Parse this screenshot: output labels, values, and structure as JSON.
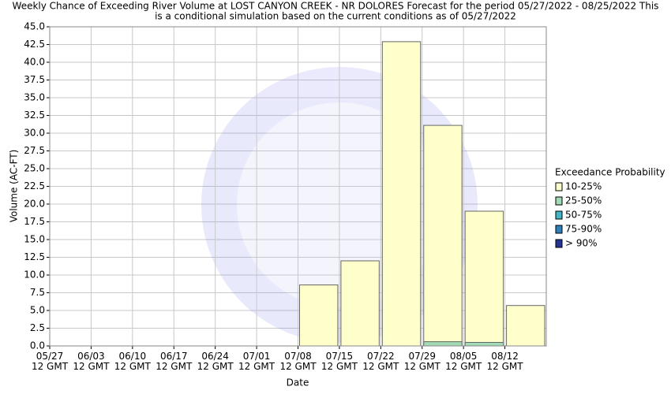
{
  "chart_data": {
    "type": "bar",
    "title": [
      "Weekly Chance of Exceeding River Volume at LOST CANYON CREEK - NR DOLORES Forecast for the period 05/27/2022 - 08/25/2022 This",
      "is a conditional simulation based on the current conditions as of 05/27/2022"
    ],
    "x_label": "Date",
    "y_label": "Volume (AC-FT)",
    "categories": [
      "05/27 12 GMT",
      "06/03 12 GMT",
      "06/10 12 GMT",
      "06/17 12 GMT",
      "06/24 12 GMT",
      "07/01 12 GMT",
      "07/08 12 GMT",
      "07/15 12 GMT",
      "07/22 12 GMT",
      "07/29 12 GMT",
      "08/05 12 GMT",
      "08/12 12 GMT"
    ],
    "legend_title": "Exceedance Probability",
    "legend_position": "right",
    "series": [
      {
        "name": "10-25%",
        "color": "#ffffcc",
        "values": [
          0,
          0,
          0,
          0,
          0,
          0,
          8.6,
          12.0,
          42.9,
          31.1,
          19.0,
          5.7
        ]
      },
      {
        "name": "25-50%",
        "color": "#a1dab4",
        "values": [
          0,
          0,
          0,
          0,
          0,
          0,
          0,
          0,
          0,
          0.6,
          0.5,
          0
        ]
      },
      {
        "name": "50-75%",
        "color": "#41b6c4",
        "values": [
          0,
          0,
          0,
          0,
          0,
          0,
          0,
          0,
          0,
          0,
          0,
          0
        ]
      },
      {
        "name": "75-90%",
        "color": "#2c7fb8",
        "values": [
          0,
          0,
          0,
          0,
          0,
          0,
          0,
          0,
          0,
          0,
          0,
          0
        ]
      },
      {
        "name": "> 90%",
        "color": "#253494",
        "values": [
          0,
          0,
          0,
          0,
          0,
          0,
          0,
          0,
          0,
          0,
          0,
          0
        ]
      }
    ],
    "ylim": [
      0,
      45
    ],
    "yticks": [
      {
        "value": 0,
        "label": "0.0"
      },
      2.5,
      {
        "value": 5,
        "label": "5.0"
      },
      7.5,
      {
        "value": 10,
        "label": "10.0"
      },
      12.5,
      {
        "value": 15,
        "label": "15.0"
      },
      17.5,
      {
        "value": 20,
        "label": "20.0"
      },
      22.5,
      {
        "value": 25,
        "label": "25.0"
      },
      27.5,
      {
        "value": 30,
        "label": "30.0"
      },
      32.5,
      {
        "value": 35,
        "label": "35.0"
      },
      37.5,
      {
        "value": 40,
        "label": "40.0"
      },
      42.5,
      {
        "value": 45,
        "label": "45.0"
      }
    ],
    "grid": true
  }
}
